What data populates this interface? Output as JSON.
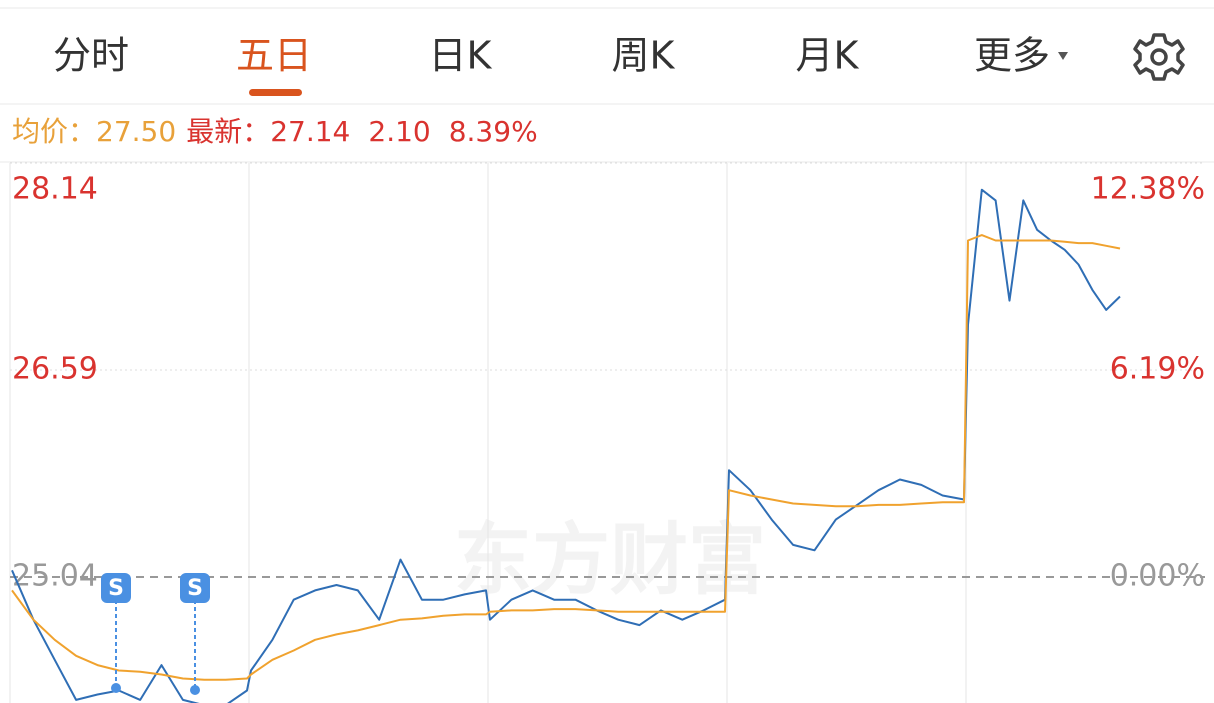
{
  "tabs": [
    "分时",
    "五日",
    "日K",
    "周K",
    "月K",
    "更多"
  ],
  "quote": {
    "avg_label": "均价：",
    "avg": "27.50",
    "latest_label": "最新：",
    "latest": "27.14",
    "change": "2.10",
    "change_pct": "8.39%"
  },
  "chart_data": {
    "type": "line",
    "watermark": "东方财富",
    "markers": [
      "S",
      "S"
    ],
    "ylim": [
      21.94,
      28.14
    ],
    "yticks": [
      28.14,
      26.59,
      25.04
    ],
    "y2lim": [
      -12.38,
      12.38
    ],
    "y2ticks": [
      {
        "value": 12.38,
        "label": "12.38%"
      },
      {
        "value": 6.19,
        "label": "6.19%"
      },
      {
        "value": 0,
        "label": "0.00%"
      }
    ],
    "series": [
      {
        "name": "价格",
        "color": "#2f6eb5",
        "values": [
          25.09,
          24.72,
          24.42,
          24.12,
          24.16,
          24.19,
          24.12,
          24.38,
          24.12,
          24.08,
          24.08,
          24.19,
          24.34,
          24.57,
          24.87,
          24.94,
          24.98,
          24.94,
          24.72,
          25.17,
          24.87,
          24.87,
          24.91,
          24.94,
          24.72,
          24.87,
          24.94,
          24.87,
          24.87,
          24.79,
          24.72,
          24.68,
          24.79,
          24.72,
          24.79,
          24.87,
          25.84,
          25.69,
          25.47,
          25.28,
          25.24,
          25.47,
          25.58,
          25.69,
          25.77,
          25.73,
          25.65,
          25.62,
          26.93,
          27.94,
          27.86,
          27.11,
          27.86,
          27.64,
          27.56,
          27.49,
          27.38,
          27.19,
          27.04,
          27.14
        ]
      },
      {
        "name": "均价",
        "color": "#f0a22e",
        "values": [
          24.94,
          24.72,
          24.57,
          24.45,
          24.38,
          24.34,
          24.33,
          24.31,
          24.28,
          24.27,
          24.27,
          24.28,
          24.31,
          24.42,
          24.49,
          24.57,
          24.61,
          24.64,
          24.68,
          24.72,
          24.73,
          24.75,
          24.76,
          24.76,
          24.78,
          24.79,
          24.79,
          24.8,
          24.8,
          24.79,
          24.78,
          24.78,
          24.78,
          24.78,
          24.78,
          24.78,
          25.69,
          25.65,
          25.62,
          25.59,
          25.58,
          25.57,
          25.57,
          25.58,
          25.58,
          25.59,
          25.6,
          25.6,
          27.56,
          27.6,
          27.56,
          27.56,
          27.56,
          27.56,
          27.56,
          27.55,
          27.54,
          27.54,
          27.52,
          27.5
        ]
      }
    ]
  }
}
